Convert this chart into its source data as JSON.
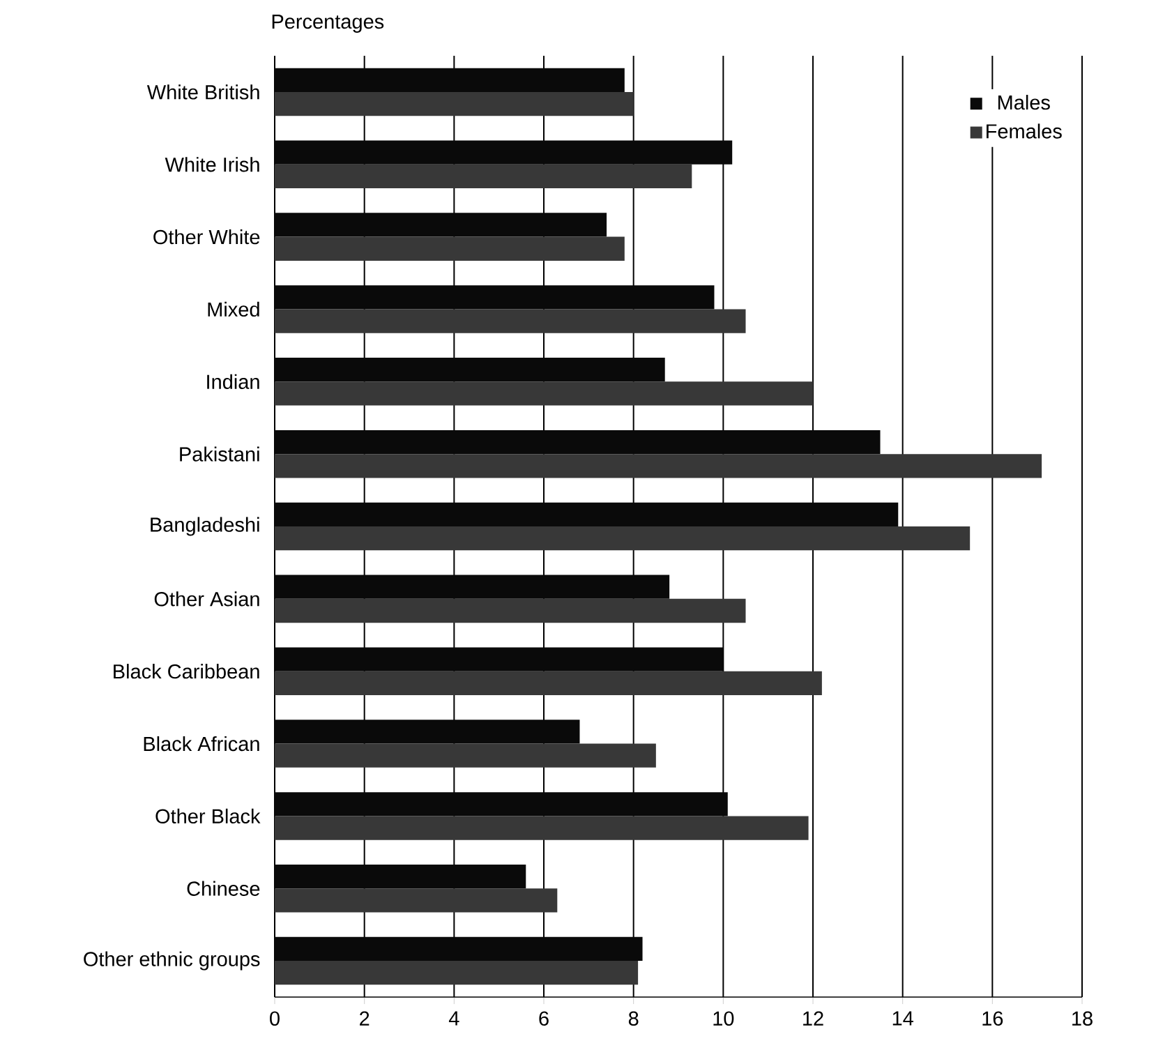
{
  "chart_data": {
    "type": "bar",
    "orientation": "horizontal",
    "title": "Percentages",
    "categories": [
      "White British",
      "White Irish",
      "Other White",
      "Mixed",
      "Indian",
      "Pakistani",
      "Bangladeshi",
      "Other Asian",
      "Black Caribbean",
      "Black African",
      "Other Black",
      "Chinese",
      "Other ethnic groups"
    ],
    "series": [
      {
        "name": "Males",
        "color": "#0a0a0a",
        "values": [
          7.8,
          10.2,
          7.4,
          9.8,
          8.7,
          13.5,
          13.9,
          8.8,
          10.0,
          6.8,
          10.1,
          5.6,
          8.2
        ]
      },
      {
        "name": "Females",
        "color": "#383838",
        "values": [
          8.0,
          9.3,
          7.8,
          10.5,
          12.0,
          17.1,
          15.5,
          10.5,
          12.2,
          8.5,
          11.9,
          6.3,
          8.1
        ]
      }
    ],
    "xlim": [
      0,
      18
    ],
    "xticks": [
      0,
      2,
      4,
      6,
      8,
      10,
      12,
      14,
      16,
      18
    ],
    "grid": "x",
    "legend": "top right"
  }
}
